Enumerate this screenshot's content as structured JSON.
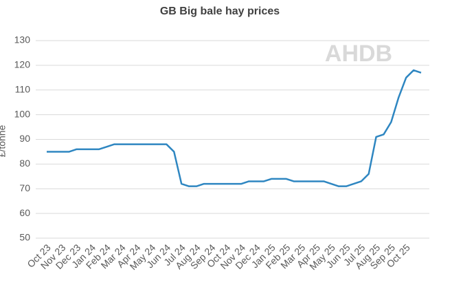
{
  "chart_data": {
    "type": "line",
    "title": "GB Big bale hay prices",
    "y_label": "£/tonne",
    "watermark": "AHDB",
    "categories": [
      "Oct 23",
      null,
      "Nov 23",
      null,
      "Dec 23",
      null,
      "Jan 24",
      null,
      "Feb 24",
      null,
      "Mar 24",
      null,
      "Apr 24",
      null,
      "May 24",
      null,
      "Jun 24",
      null,
      "Jul 24",
      null,
      "Aug 24",
      null,
      "Sep 24",
      null,
      "Oct 24",
      null,
      "Nov 24",
      null,
      "Dec 24",
      null,
      "Jan 25",
      null,
      "Feb 25",
      null,
      "Mar 25",
      null,
      "Apr 25",
      null,
      "May 25",
      null,
      "Jun 25",
      null,
      "Jul 25",
      null,
      "Aug 25",
      null,
      "Sep 25",
      null,
      "Oct 25",
      null,
      null
    ],
    "series": [
      {
        "name": "GB Big bale hay",
        "color": "#2e86c1",
        "values": [
          85,
          85,
          85,
          85,
          86,
          86,
          86,
          86,
          87,
          88,
          88,
          88,
          88,
          88,
          88,
          88,
          88,
          85,
          72,
          71,
          71,
          72,
          72,
          72,
          72,
          72,
          72,
          73,
          73,
          73,
          74,
          74,
          74,
          73,
          73,
          73,
          73,
          73,
          72,
          71,
          71,
          72,
          73,
          76,
          91,
          92,
          97,
          107,
          115,
          118,
          117
        ]
      }
    ],
    "ylim": [
      50,
      130
    ],
    "yticks": [
      50,
      60,
      70,
      80,
      90,
      100,
      110,
      120,
      130
    ],
    "grid": true
  }
}
